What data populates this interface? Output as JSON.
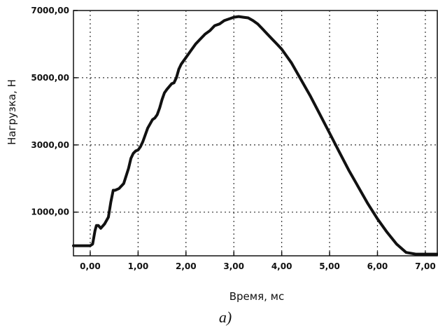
{
  "chart_data": {
    "type": "line",
    "xlabel": "Время, мс",
    "ylabel": "Нагрузка, Н",
    "caption": "а)",
    "xlim": [
      -0.35,
      7.25
    ],
    "ylim": [
      -300,
      7000
    ],
    "x_ticks": [
      0,
      1,
      2,
      3,
      4,
      5,
      6,
      7
    ],
    "x_tick_labels": [
      "0,00",
      "1,00",
      "2,00",
      "3,00",
      "4,00",
      "5,00",
      "6,00",
      "7,00"
    ],
    "y_ticks": [
      1000,
      3000,
      5000,
      7000
    ],
    "y_tick_labels": [
      "1000,00",
      "3000,00",
      "5000,00",
      "7000,00"
    ],
    "grid": true,
    "line_color": "#111111",
    "series": [
      {
        "x": [
          -0.35,
          0.0,
          0.05,
          0.1,
          0.13,
          0.17,
          0.22,
          0.3,
          0.38,
          0.43,
          0.48,
          0.52,
          0.6,
          0.7,
          0.8,
          0.85,
          0.9,
          0.95,
          1.0,
          1.05,
          1.1,
          1.2,
          1.3,
          1.35,
          1.4,
          1.45,
          1.5,
          1.55,
          1.6,
          1.7,
          1.75,
          1.8,
          1.85,
          1.9,
          2.0,
          2.1,
          2.2,
          2.3,
          2.4,
          2.5,
          2.6,
          2.7,
          2.8,
          2.9,
          3.0,
          3.1,
          3.2,
          3.3,
          3.4,
          3.5,
          3.6,
          3.7,
          3.8,
          3.9,
          4.0,
          4.2,
          4.4,
          4.6,
          4.8,
          5.0,
          5.2,
          5.4,
          5.6,
          5.8,
          6.0,
          6.2,
          6.4,
          6.6,
          6.8,
          7.0,
          7.1,
          7.25
        ],
        "y": [
          0,
          0,
          50,
          450,
          600,
          600,
          520,
          650,
          850,
          1300,
          1650,
          1650,
          1700,
          1850,
          2300,
          2600,
          2750,
          2820,
          2850,
          2950,
          3100,
          3500,
          3750,
          3800,
          3900,
          4100,
          4350,
          4550,
          4650,
          4820,
          4850,
          5000,
          5250,
          5400,
          5600,
          5800,
          6000,
          6150,
          6300,
          6400,
          6550,
          6600,
          6700,
          6750,
          6800,
          6820,
          6800,
          6780,
          6700,
          6600,
          6450,
          6300,
          6150,
          6000,
          5850,
          5450,
          4950,
          4450,
          3900,
          3350,
          2800,
          2250,
          1750,
          1250,
          800,
          400,
          50,
          -200,
          -250,
          -250,
          -250,
          -250
        ]
      }
    ]
  }
}
